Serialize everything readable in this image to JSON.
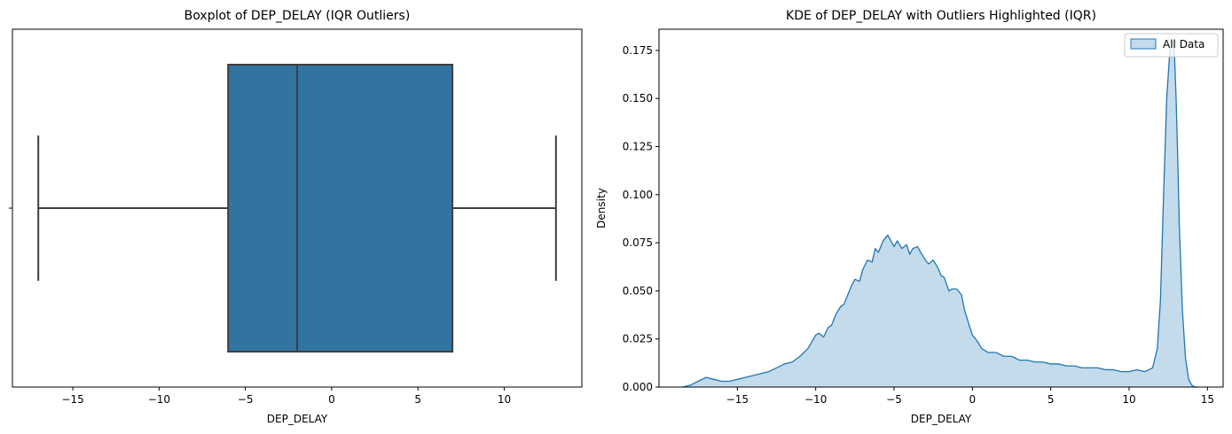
{
  "chart_data": [
    {
      "type": "boxplot",
      "title": "Boxplot of DEP_DELAY (IQR Outliers)",
      "xlabel": "DEP_DELAY",
      "ylabel": "",
      "xlim": [
        -18.5,
        14.5
      ],
      "xticks": [
        -15,
        -10,
        -5,
        0,
        5,
        10
      ],
      "stats": {
        "whisker_low": -17,
        "q1": -6,
        "median": -2,
        "q3": 7,
        "whisker_high": 13
      },
      "color": "#3274a1",
      "edge_color": "#3f3f3f"
    },
    {
      "type": "area",
      "title": "KDE of DEP_DELAY with Outliers Highlighted (IQR)",
      "xlabel": "DEP_DELAY",
      "ylabel": "Density",
      "xlim": [
        -20,
        16
      ],
      "ylim": [
        0,
        0.186
      ],
      "xticks": [
        -15,
        -10,
        -5,
        0,
        5,
        10,
        15
      ],
      "yticks": [
        "0.000",
        "0.025",
        "0.050",
        "0.075",
        "0.100",
        "0.125",
        "0.150",
        "0.175"
      ],
      "legend": {
        "position": "top-right",
        "entries": [
          "All Data"
        ]
      },
      "line_color": "#1f77b4",
      "fill_color": "#c4dbec",
      "series": [
        {
          "name": "All Data",
          "x": [
            -18.5,
            -18,
            -17.5,
            -17,
            -16.5,
            -16,
            -15.5,
            -15,
            -14.5,
            -14,
            -13.5,
            -13,
            -12.5,
            -12,
            -11.5,
            -11,
            -10.5,
            -10,
            -9.8,
            -9.5,
            -9.2,
            -9,
            -8.7,
            -8.4,
            -8.2,
            -8,
            -7.7,
            -7.5,
            -7.2,
            -7,
            -6.7,
            -6.4,
            -6.2,
            -6,
            -5.7,
            -5.4,
            -5.2,
            -5,
            -4.8,
            -4.5,
            -4.2,
            -4,
            -3.8,
            -3.5,
            -3.3,
            -3,
            -2.8,
            -2.5,
            -2.2,
            -2,
            -1.8,
            -1.5,
            -1.3,
            -1,
            -0.7,
            -0.5,
            -0.2,
            0,
            0.3,
            0.6,
            1,
            1.5,
            2,
            2.5,
            3,
            3.5,
            4,
            4.5,
            5,
            5.5,
            6,
            6.5,
            7,
            7.5,
            8,
            8.5,
            9,
            9.5,
            10,
            10.5,
            11,
            11.5,
            11.8,
            12,
            12.2,
            12.4,
            12.6,
            12.8,
            12.9,
            13,
            13.1,
            13.2,
            13.4,
            13.6,
            13.8,
            14,
            14.2,
            14.4
          ],
          "y": [
            0,
            0.001,
            0.003,
            0.005,
            0.004,
            0.003,
            0.003,
            0.004,
            0.005,
            0.006,
            0.007,
            0.008,
            0.01,
            0.012,
            0.013,
            0.016,
            0.02,
            0.027,
            0.028,
            0.026,
            0.031,
            0.032,
            0.038,
            0.042,
            0.043,
            0.047,
            0.053,
            0.056,
            0.055,
            0.061,
            0.066,
            0.065,
            0.072,
            0.07,
            0.076,
            0.079,
            0.076,
            0.073,
            0.076,
            0.072,
            0.074,
            0.069,
            0.072,
            0.073,
            0.07,
            0.066,
            0.064,
            0.066,
            0.062,
            0.058,
            0.057,
            0.05,
            0.051,
            0.051,
            0.048,
            0.04,
            0.032,
            0.027,
            0.024,
            0.02,
            0.018,
            0.018,
            0.016,
            0.016,
            0.014,
            0.014,
            0.013,
            0.013,
            0.012,
            0.012,
            0.011,
            0.011,
            0.01,
            0.01,
            0.01,
            0.009,
            0.009,
            0.008,
            0.008,
            0.009,
            0.008,
            0.01,
            0.02,
            0.045,
            0.1,
            0.15,
            0.175,
            0.18,
            0.172,
            0.15,
            0.12,
            0.085,
            0.04,
            0.015,
            0.004,
            0.001,
            0,
            0
          ]
        }
      ]
    }
  ]
}
